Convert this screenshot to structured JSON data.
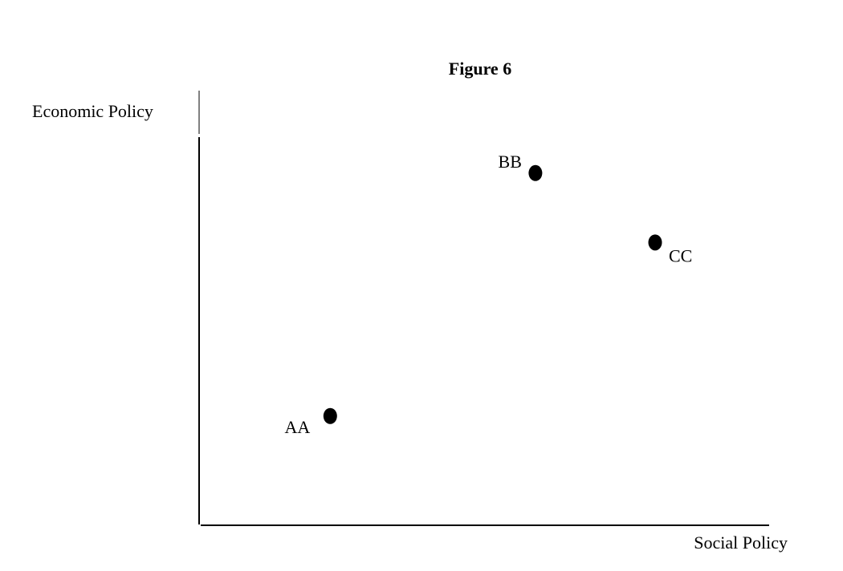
{
  "chart_data": {
    "type": "scatter",
    "title": "Figure 6",
    "xlabel": "Social Policy",
    "ylabel": "Economic Policy",
    "xlim": [
      0,
      100
    ],
    "ylim": [
      0,
      100
    ],
    "grid": false,
    "points": [
      {
        "label": "AA",
        "x": 23,
        "y": 25
      },
      {
        "label": "BB",
        "x": 59,
        "y": 81
      },
      {
        "label": "CC",
        "x": 80,
        "y": 65
      }
    ]
  }
}
